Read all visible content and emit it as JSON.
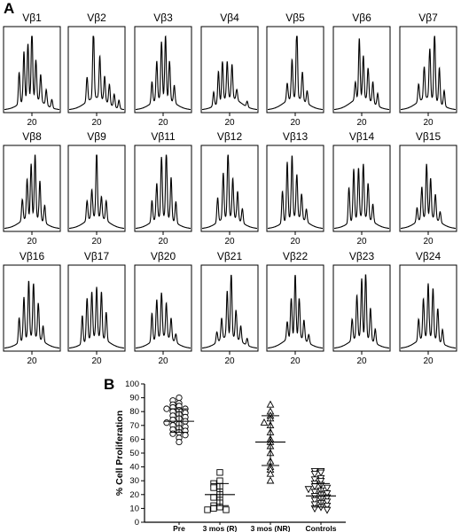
{
  "panel_a": {
    "letter": "A"
  },
  "panel_b": {
    "letter": "B"
  },
  "chart_data": [
    {
      "type": "line",
      "panel": "A",
      "kind": "spectratype-histograms",
      "x_tick_label": "20",
      "panels": [
        {
          "label": "Vβ1",
          "peaks": [
            [
              -1.6,
              0.45
            ],
            [
              -1.0,
              0.7
            ],
            [
              -0.5,
              0.78
            ],
            [
              0,
              1.0
            ],
            [
              0.5,
              0.55
            ],
            [
              1.1,
              0.38
            ],
            [
              1.8,
              0.22
            ],
            [
              2.5,
              0.12
            ]
          ]
        },
        {
          "label": "Vβ2",
          "peaks": [
            [
              -1.2,
              0.35
            ],
            [
              -0.4,
              1.0
            ],
            [
              0.4,
              0.6
            ],
            [
              1.0,
              0.35
            ],
            [
              1.6,
              0.28
            ],
            [
              2.2,
              0.18
            ],
            [
              2.8,
              0.12
            ]
          ]
        },
        {
          "label": "Vβ3",
          "peaks": [
            [
              -1.4,
              0.3
            ],
            [
              -0.8,
              0.55
            ],
            [
              -0.2,
              0.8
            ],
            [
              0.3,
              0.9
            ],
            [
              0.8,
              0.55
            ],
            [
              1.4,
              0.25
            ]
          ]
        },
        {
          "label": "Vβ4",
          "peaks": [
            [
              -2.0,
              0.2
            ],
            [
              -1.4,
              0.45
            ],
            [
              -0.9,
              0.55
            ],
            [
              -0.3,
              0.52
            ],
            [
              0.3,
              0.48
            ],
            [
              0.9,
              0.15
            ],
            [
              2.2,
              0.08
            ]
          ]
        },
        {
          "label": "Vβ5",
          "peaks": [
            [
              -1.0,
              0.25
            ],
            [
              -0.4,
              0.55
            ],
            [
              0.2,
              1.0
            ],
            [
              0.9,
              0.4
            ],
            [
              1.5,
              0.18
            ]
          ]
        },
        {
          "label": "Vβ6",
          "peaks": [
            [
              -0.8,
              0.25
            ],
            [
              -0.3,
              0.85
            ],
            [
              0.2,
              0.6
            ],
            [
              0.8,
              0.45
            ],
            [
              1.4,
              0.3
            ],
            [
              2.0,
              0.18
            ]
          ]
        },
        {
          "label": "Vβ7",
          "peaks": [
            [
              -1.2,
              0.25
            ],
            [
              -0.5,
              0.45
            ],
            [
              0.2,
              0.7
            ],
            [
              0.8,
              0.95
            ],
            [
              1.4,
              0.5
            ],
            [
              2.0,
              0.22
            ]
          ]
        },
        {
          "label": "Vβ8",
          "peaks": [
            [
              -1.2,
              0.3
            ],
            [
              -0.6,
              0.55
            ],
            [
              -0.1,
              0.75
            ],
            [
              0.4,
              0.9
            ],
            [
              1.0,
              0.55
            ],
            [
              1.6,
              0.25
            ]
          ]
        },
        {
          "label": "Vβ9",
          "peaks": [
            [
              -1.2,
              0.28
            ],
            [
              -0.6,
              0.4
            ],
            [
              0.0,
              0.95
            ],
            [
              0.6,
              0.3
            ],
            [
              1.2,
              0.28
            ]
          ]
        },
        {
          "label": "Vβ11",
          "peaks": [
            [
              -1.4,
              0.3
            ],
            [
              -0.8,
              0.5
            ],
            [
              -0.2,
              0.85
            ],
            [
              0.4,
              0.95
            ],
            [
              1.0,
              0.6
            ],
            [
              1.6,
              0.3
            ]
          ]
        },
        {
          "label": "Vβ12",
          "peaks": [
            [
              -1.5,
              0.35
            ],
            [
              -0.8,
              0.65
            ],
            [
              -0.2,
              0.92
            ],
            [
              0.4,
              0.55
            ],
            [
              1.0,
              0.4
            ],
            [
              1.6,
              0.2
            ]
          ]
        },
        {
          "label": "Vβ13",
          "peaks": [
            [
              -1.6,
              0.45
            ],
            [
              -1.0,
              0.82
            ],
            [
              -0.4,
              0.88
            ],
            [
              0.2,
              0.6
            ],
            [
              0.8,
              0.35
            ],
            [
              1.4,
              0.18
            ]
          ]
        },
        {
          "label": "Vβ14",
          "peaks": [
            [
              -1.6,
              0.5
            ],
            [
              -1.0,
              0.72
            ],
            [
              -0.4,
              0.7
            ],
            [
              0.2,
              0.75
            ],
            [
              0.8,
              0.5
            ],
            [
              1.4,
              0.25
            ]
          ]
        },
        {
          "label": "Vβ15",
          "peaks": [
            [
              -1.4,
              0.2
            ],
            [
              -0.8,
              0.45
            ],
            [
              -0.2,
              0.75
            ],
            [
              0.3,
              0.55
            ],
            [
              0.9,
              0.35
            ],
            [
              1.5,
              0.15
            ]
          ]
        },
        {
          "label": "Vβ16",
          "peaks": [
            [
              -1.6,
              0.35
            ],
            [
              -1.0,
              0.6
            ],
            [
              -0.4,
              0.8
            ],
            [
              0.2,
              0.75
            ],
            [
              0.8,
              0.5
            ],
            [
              1.4,
              0.22
            ]
          ]
        },
        {
          "label": "Vβ17",
          "peaks": [
            [
              -1.8,
              0.4
            ],
            [
              -1.2,
              0.6
            ],
            [
              -0.6,
              0.65
            ],
            [
              0.0,
              0.7
            ],
            [
              0.6,
              0.65
            ],
            [
              1.2,
              0.4
            ]
          ]
        },
        {
          "label": "Vβ20",
          "peaks": [
            [
              -1.4,
              0.4
            ],
            [
              -0.8,
              0.55
            ],
            [
              -0.2,
              0.62
            ],
            [
              0.4,
              0.48
            ],
            [
              1.0,
              0.3
            ],
            [
              1.6,
              0.12
            ]
          ]
        },
        {
          "label": "Vβ21",
          "peaks": [
            [
              -1.6,
              0.15
            ],
            [
              -1.0,
              0.3
            ],
            [
              -0.3,
              0.65
            ],
            [
              0.2,
              0.9
            ],
            [
              0.8,
              0.4
            ],
            [
              1.4,
              0.22
            ],
            [
              2.2,
              0.1
            ]
          ]
        },
        {
          "label": "Vβ22",
          "peaks": [
            [
              -1.0,
              0.25
            ],
            [
              -0.5,
              0.55
            ],
            [
              0.0,
              0.9
            ],
            [
              0.5,
              0.55
            ],
            [
              1.1,
              0.28
            ],
            [
              1.7,
              0.12
            ]
          ]
        },
        {
          "label": "Vβ23",
          "peaks": [
            [
              -1.2,
              0.3
            ],
            [
              -0.6,
              0.6
            ],
            [
              0.0,
              0.82
            ],
            [
              0.5,
              0.9
            ],
            [
              1.1,
              0.45
            ],
            [
              1.7,
              0.2
            ]
          ]
        },
        {
          "label": "Vβ24",
          "peaks": [
            [
              -1.2,
              0.3
            ],
            [
              -0.6,
              0.55
            ],
            [
              0.0,
              0.75
            ],
            [
              0.6,
              0.7
            ],
            [
              1.2,
              0.45
            ],
            [
              1.8,
              0.2
            ]
          ]
        }
      ]
    },
    {
      "type": "scatter",
      "panel": "B",
      "ylabel": "% Cell Proliferation",
      "ylim": [
        0,
        100
      ],
      "y_ticks": [
        0,
        10,
        20,
        30,
        40,
        50,
        60,
        70,
        80,
        90,
        100
      ],
      "grid": false,
      "categories": [
        "Pre",
        "3 mos (R)",
        "3 mos (NR)",
        "Controls"
      ],
      "series": [
        {
          "category": "Pre",
          "marker": "circle",
          "mean": 73,
          "sd_low": 65,
          "sd_high": 82,
          "values": [
            90,
            88,
            86,
            85,
            84,
            83,
            82,
            82,
            81,
            80,
            79,
            78,
            77,
            76,
            75,
            74,
            73,
            72,
            71,
            70,
            69,
            68,
            67,
            66,
            65,
            64,
            63,
            61,
            58
          ]
        },
        {
          "category": "3 mos (R)",
          "marker": "square",
          "mean": 20,
          "sd_low": 12,
          "sd_high": 28,
          "values": [
            36,
            30,
            28,
            26,
            25,
            22,
            20,
            18,
            16,
            14,
            12,
            11,
            10,
            9,
            9
          ]
        },
        {
          "category": "3 mos (NR)",
          "marker": "triangle-up",
          "mean": 58,
          "sd_low": 41,
          "sd_high": 77,
          "values": [
            85,
            80,
            77,
            75,
            72,
            70,
            65,
            60,
            58,
            55,
            50,
            44,
            40,
            38,
            35,
            30
          ]
        },
        {
          "category": "Controls",
          "marker": "triangle-down",
          "mean": 19,
          "sd_low": 11,
          "sd_high": 28,
          "values": [
            37,
            37,
            36,
            35,
            32,
            31,
            30,
            28,
            27,
            26,
            25,
            24,
            23,
            22,
            21,
            20,
            19,
            18,
            17,
            16,
            15,
            14,
            13,
            12,
            11,
            10,
            9
          ]
        }
      ]
    }
  ]
}
